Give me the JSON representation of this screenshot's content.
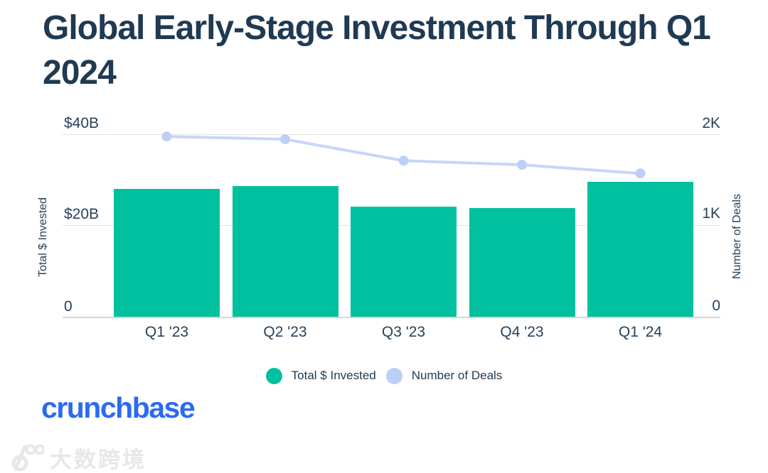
{
  "title": "Global Early-Stage Investment Through Q1 2024",
  "chart_data": {
    "type": "bar",
    "subtype": "bar+line dual axis",
    "categories": [
      "Q1 '23",
      "Q2 '23",
      "Q3 '23",
      "Q4 '23",
      "Q1 '24"
    ],
    "series": [
      {
        "name": "Total $ Invested",
        "type": "bar",
        "axis": "left",
        "unit": "USD billions",
        "values": [
          28.0,
          28.7,
          24.2,
          23.8,
          29.6
        ],
        "color": "#00C0A0"
      },
      {
        "name": "Number of Deals",
        "type": "line",
        "axis": "right",
        "unit": "deals",
        "values": [
          1975,
          1945,
          1710,
          1665,
          1570
        ],
        "color": "#C7D6F9",
        "dot_color": "#BCCFF7"
      }
    ],
    "left_axis": {
      "title": "Total $ Invested",
      "ticks": [
        "$40B",
        "$20B",
        "0"
      ],
      "range": [
        0,
        40
      ]
    },
    "right_axis": {
      "title": "Number of Deals",
      "ticks": [
        "2K",
        "1K",
        "0"
      ],
      "range": [
        0,
        2000
      ]
    },
    "grid": "horizontal gridlines at 50% and 100%",
    "legend_position": "bottom"
  },
  "legend": {
    "items": [
      {
        "label": "Total $ Invested",
        "color": "#00C0A0"
      },
      {
        "label": "Number of Deals",
        "color": "#BCCFF7"
      }
    ]
  },
  "branding": {
    "logo_text": "crunchbase",
    "color": "#2A6AF5"
  },
  "watermark": {
    "logo": "100-rings-logo",
    "text": "大数跨境"
  }
}
